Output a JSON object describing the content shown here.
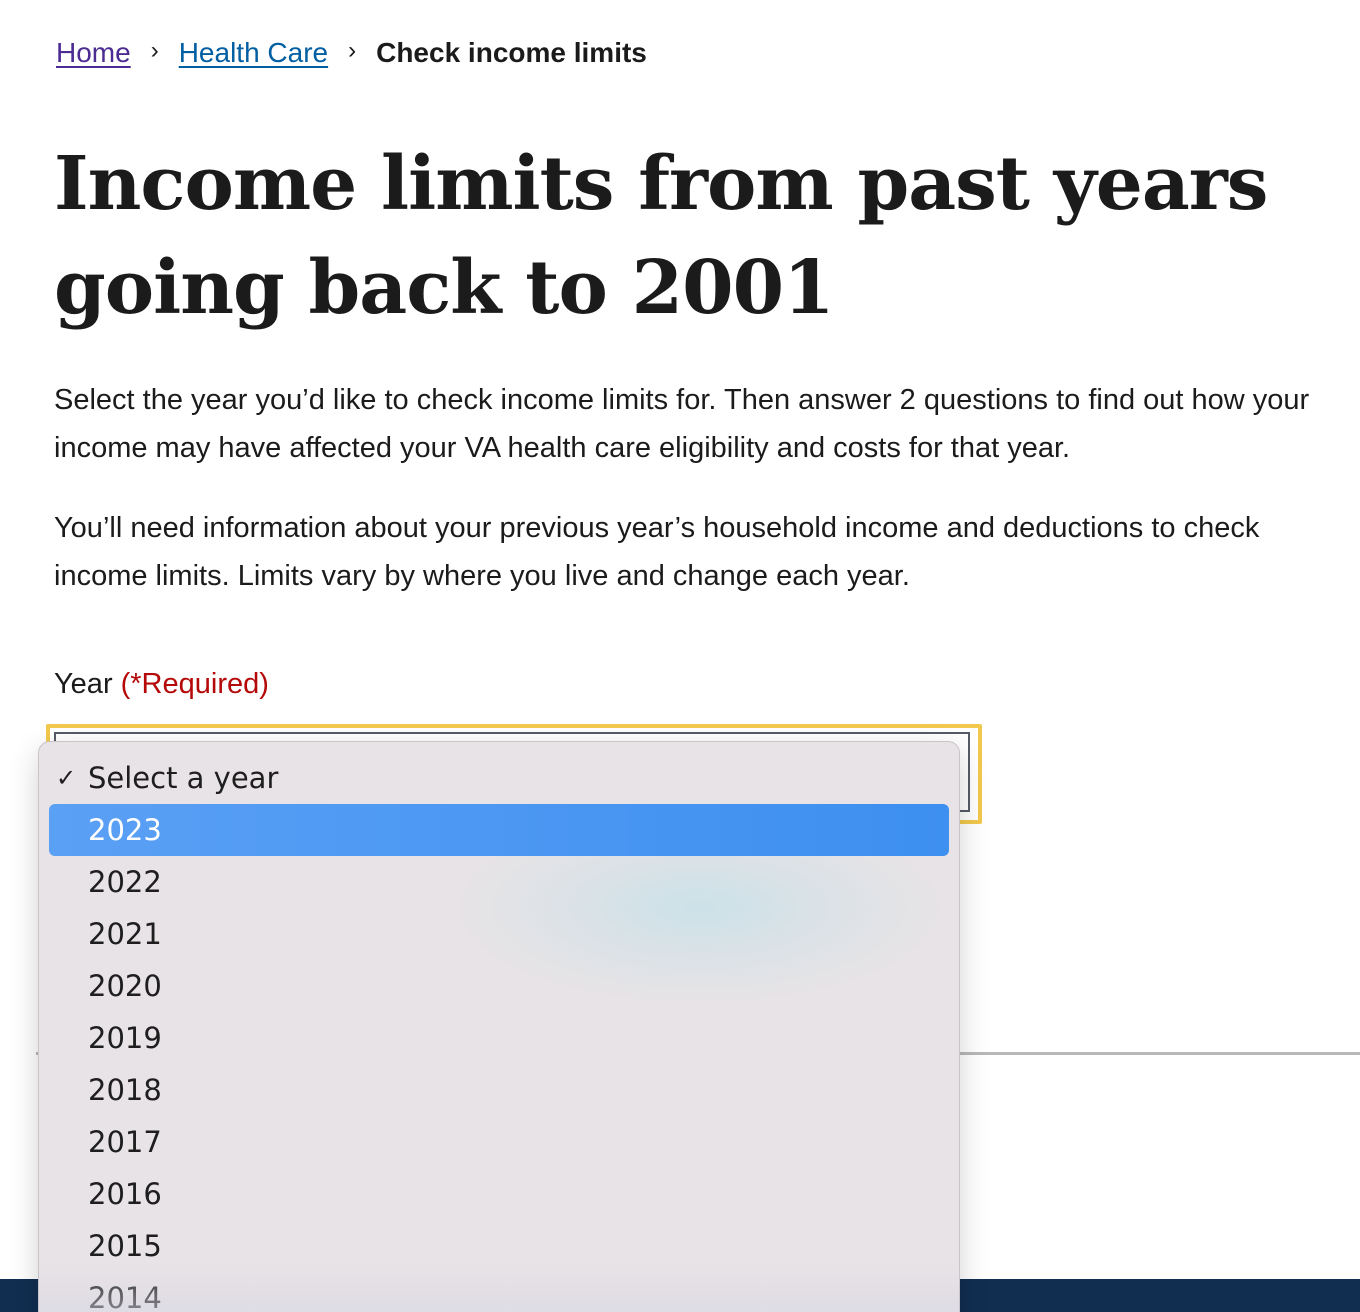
{
  "breadcrumb": {
    "home": "Home",
    "health_care": "Health Care",
    "current": "Check income limits",
    "separator": "›"
  },
  "page_title": "Income limits from past years going back to 2001",
  "intro": [
    "Select the year you’d like to check income limits for. Then answer 2 questions to find out how your income may have affected your VA health care eligibility and costs for that year.",
    "You’ll need information about your previous year’s household income and deductions to check income limits. Limits vary by where you live and change each year."
  ],
  "year_field": {
    "label": "Year",
    "required": "(*Required)",
    "selected_value": "Select a year"
  },
  "dropdown": {
    "check_mark": "✓",
    "options": [
      "Select a year",
      "2023",
      "2022",
      "2021",
      "2020",
      "2019",
      "2018",
      "2017",
      "2016",
      "2015",
      "2014"
    ],
    "checked_option": "Select a year",
    "highlighted_option": "2023"
  },
  "colors": {
    "visited_link": "#4c2c92",
    "link": "#005ea2",
    "required": "#b50909",
    "focus_ring": "#f2c94c",
    "highlight": "#3d8ff0",
    "footer": "#112e51"
  }
}
